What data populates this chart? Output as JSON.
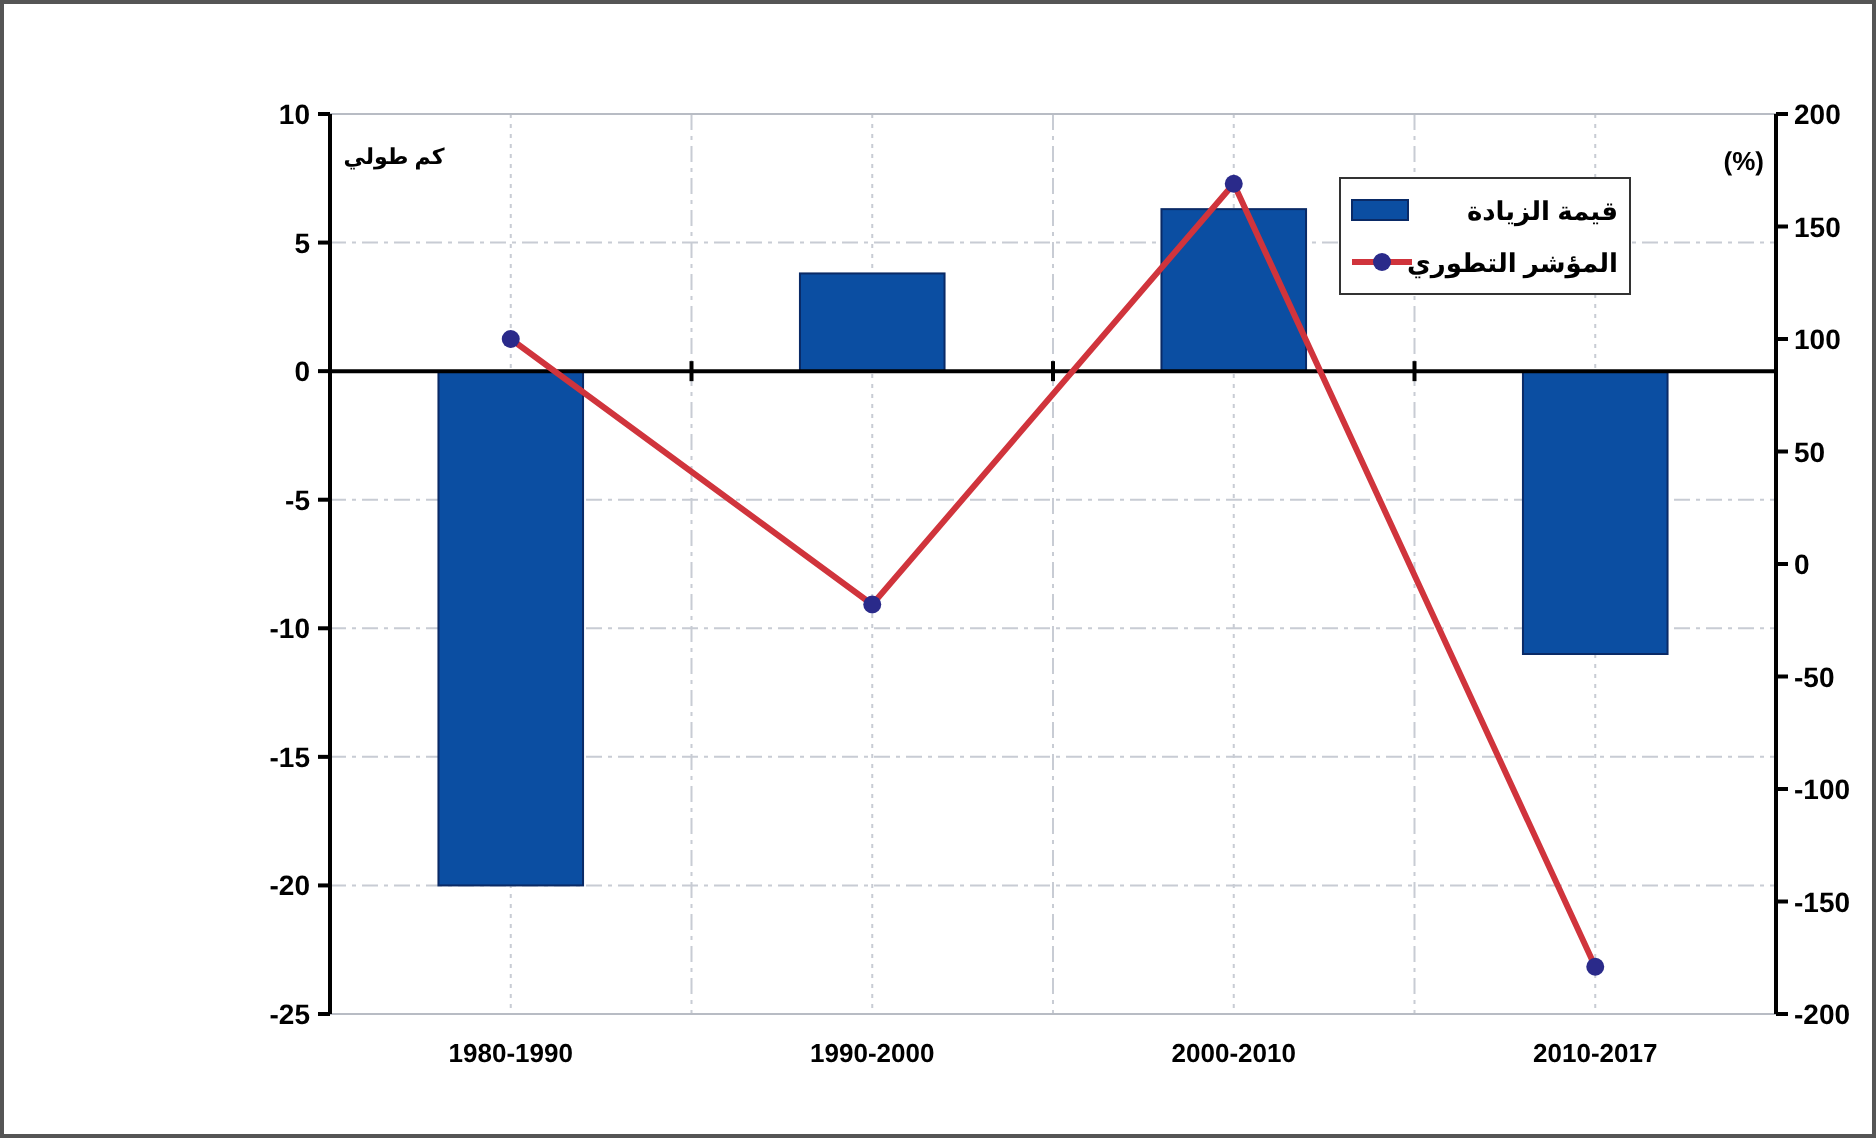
{
  "chart_data": {
    "type": "bar",
    "categories": [
      "1980-1990",
      "1990-2000",
      "2000-2010",
      "2010-2017"
    ],
    "ylabel": "كم طولي",
    "y2label": "(%)",
    "series": [
      {
        "name": "قيمة الزيادة",
        "color": "#0b4ea2",
        "values": [
          -20,
          3.8,
          6.3,
          -11
        ]
      },
      {
        "name": "المؤشر التطوري",
        "type": "line",
        "axis": "y2",
        "color": "#d0343c",
        "marker": "circle",
        "values": [
          100,
          -18,
          169,
          -179
        ]
      }
    ],
    "ylim": [
      -25,
      10
    ],
    "yticks": [
      -25,
      -20,
      -15,
      -10,
      -5,
      0,
      5,
      10
    ],
    "y2lim": [
      -200,
      200
    ],
    "y2ticks": [
      -200,
      -150,
      -100,
      -50,
      0,
      50,
      100,
      150,
      200
    ],
    "grid": true,
    "legend": "top right"
  }
}
